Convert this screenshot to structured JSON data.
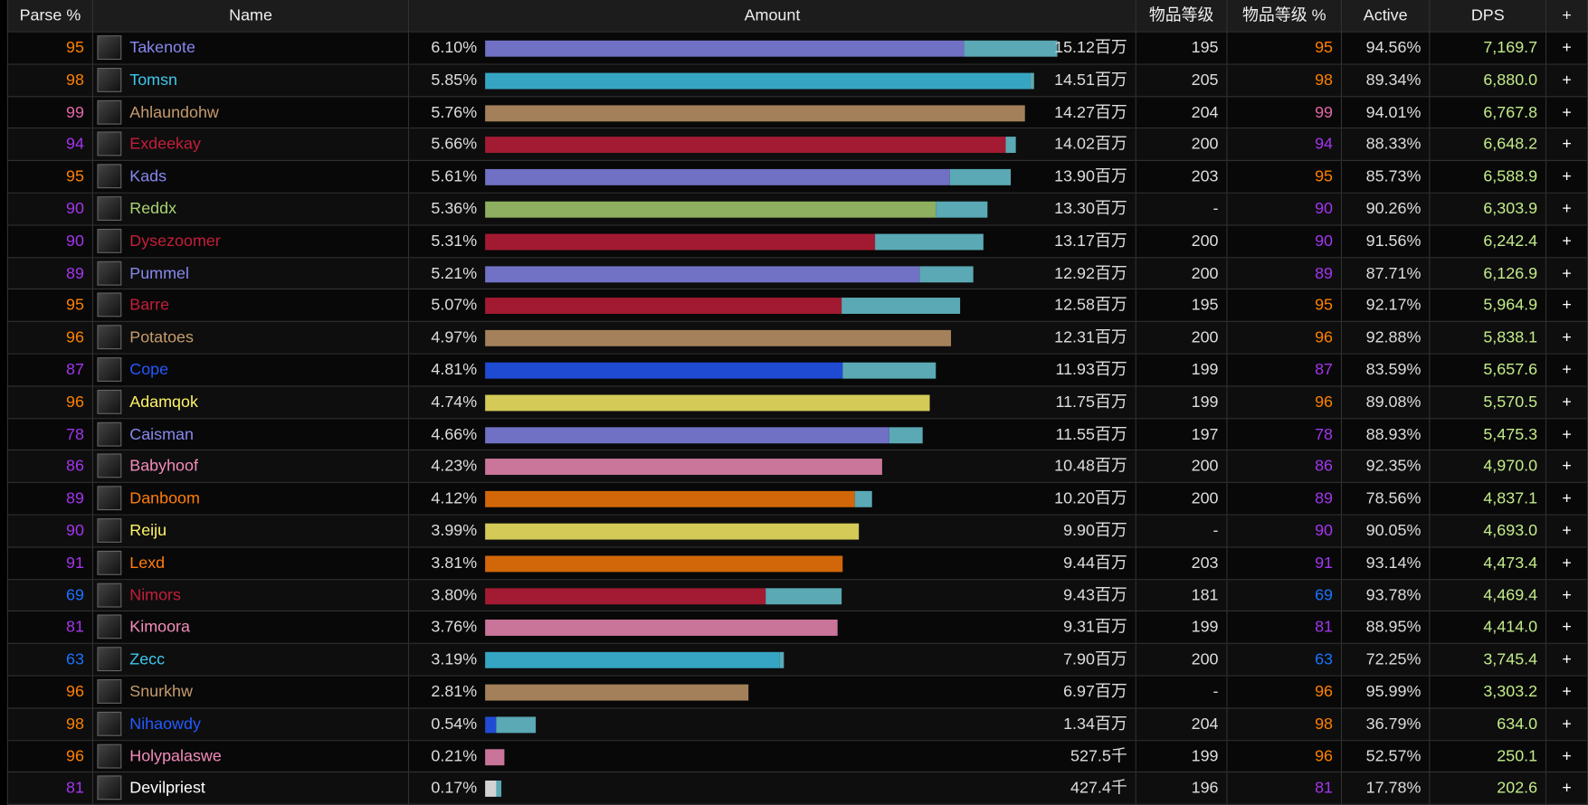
{
  "header": {
    "columns": [
      "Parse %",
      "Name",
      "Amount",
      "物品等级",
      "物品等级 %",
      "Active",
      "DPS",
      "+"
    ]
  },
  "table": {
    "rows": [
      {
        "parse": 95,
        "name": "Takenote",
        "color": "#8788ee",
        "amount_pct": "6.10%",
        "bar": [
          5.11,
          0.99
        ],
        "amount": "15.12百万",
        "ilvl": 195,
        "ilvl_pct": 95,
        "active": "94.56%",
        "dps": "7,169.7",
        "action": "+"
      },
      {
        "parse": 98,
        "name": "Tomsn",
        "color": "#3fc7eb",
        "amount_pct": "5.85%",
        "bar": [
          5.81,
          0.04
        ],
        "amount": "14.51百万",
        "ilvl": 205,
        "ilvl_pct": 98,
        "active": "89.34%",
        "dps": "6,880.0",
        "action": "+"
      },
      {
        "parse": 99,
        "name": "Ahlaundohw",
        "color": "#c69b6d",
        "amount_pct": "5.76%",
        "bar": [
          5.76,
          0
        ],
        "amount": "14.27百万",
        "ilvl": 204,
        "ilvl_pct": 99,
        "active": "94.01%",
        "dps": "6,767.8",
        "action": "+"
      },
      {
        "parse": 94,
        "name": "Exdeekay",
        "color": "#c41e3a",
        "amount_pct": "5.66%",
        "bar": [
          5.55,
          0.11
        ],
        "amount": "14.02百万",
        "ilvl": 200,
        "ilvl_pct": 94,
        "active": "88.33%",
        "dps": "6,648.2",
        "action": "+"
      },
      {
        "parse": 95,
        "name": "Kads",
        "color": "#8788ee",
        "amount_pct": "5.61%",
        "bar": [
          4.96,
          0.65
        ],
        "amount": "13.90百万",
        "ilvl": 203,
        "ilvl_pct": 95,
        "active": "85.73%",
        "dps": "6,588.9",
        "action": "+"
      },
      {
        "parse": 90,
        "name": "Reddx",
        "color": "#aad372",
        "amount_pct": "5.36%",
        "bar": [
          4.81,
          0.55
        ],
        "amount": "13.30百万",
        "ilvl": "-",
        "ilvl_pct": 90,
        "active": "90.26%",
        "dps": "6,303.9",
        "action": "+"
      },
      {
        "parse": 90,
        "name": "Dysezoomer",
        "color": "#c41e3a",
        "amount_pct": "5.31%",
        "bar": [
          4.16,
          1.15
        ],
        "amount": "13.17百万",
        "ilvl": 200,
        "ilvl_pct": 90,
        "active": "91.56%",
        "dps": "6,242.4",
        "action": "+"
      },
      {
        "parse": 89,
        "name": "Pummel",
        "color": "#8788ee",
        "amount_pct": "5.21%",
        "bar": [
          4.63,
          0.58
        ],
        "amount": "12.92百万",
        "ilvl": 200,
        "ilvl_pct": 89,
        "active": "87.71%",
        "dps": "6,126.9",
        "action": "+"
      },
      {
        "parse": 95,
        "name": "Barre",
        "color": "#c41e3a",
        "amount_pct": "5.07%",
        "bar": [
          3.8,
          1.27
        ],
        "amount": "12.58百万",
        "ilvl": 195,
        "ilvl_pct": 95,
        "active": "92.17%",
        "dps": "5,964.9",
        "action": "+"
      },
      {
        "parse": 96,
        "name": "Potatoes",
        "color": "#c69b6d",
        "amount_pct": "4.97%",
        "bar": [
          4.97,
          0
        ],
        "amount": "12.31百万",
        "ilvl": 200,
        "ilvl_pct": 96,
        "active": "92.88%",
        "dps": "5,838.1",
        "action": "+"
      },
      {
        "parse": 87,
        "name": "Cope",
        "color": "#2459ff",
        "amount_pct": "4.81%",
        "bar": [
          3.81,
          1.0
        ],
        "amount": "11.93百万",
        "ilvl": 199,
        "ilvl_pct": 87,
        "active": "83.59%",
        "dps": "5,657.6",
        "action": "+"
      },
      {
        "parse": 96,
        "name": "Adamqok",
        "color": "#fff468",
        "amount_pct": "4.74%",
        "bar": [
          4.74,
          0
        ],
        "amount": "11.75百万",
        "ilvl": 199,
        "ilvl_pct": 96,
        "active": "89.08%",
        "dps": "5,570.5",
        "action": "+"
      },
      {
        "parse": 78,
        "name": "Caisman",
        "color": "#8788ee",
        "amount_pct": "4.66%",
        "bar": [
          4.31,
          0.35
        ],
        "amount": "11.55百万",
        "ilvl": 197,
        "ilvl_pct": 78,
        "active": "88.93%",
        "dps": "5,475.3",
        "action": "+"
      },
      {
        "parse": 86,
        "name": "Babyhoof",
        "color": "#f48cba",
        "amount_pct": "4.23%",
        "bar": [
          4.23,
          0
        ],
        "amount": "10.48百万",
        "ilvl": 200,
        "ilvl_pct": 86,
        "active": "92.35%",
        "dps": "4,970.0",
        "action": "+"
      },
      {
        "parse": 89,
        "name": "Danboom",
        "color": "#ff7c0a",
        "amount_pct": "4.12%",
        "bar": [
          3.94,
          0.18
        ],
        "amount": "10.20百万",
        "ilvl": 200,
        "ilvl_pct": 89,
        "active": "78.56%",
        "dps": "4,837.1",
        "action": "+"
      },
      {
        "parse": 90,
        "name": "Reiju",
        "color": "#fff468",
        "amount_pct": "3.99%",
        "bar": [
          3.99,
          0
        ],
        "amount": "9.90百万",
        "ilvl": "-",
        "ilvl_pct": 90,
        "active": "90.05%",
        "dps": "4,693.0",
        "action": "+"
      },
      {
        "parse": 91,
        "name": "Lexd",
        "color": "#ff7c0a",
        "amount_pct": "3.81%",
        "bar": [
          3.81,
          0
        ],
        "amount": "9.44百万",
        "ilvl": 203,
        "ilvl_pct": 91,
        "active": "93.14%",
        "dps": "4,473.4",
        "action": "+"
      },
      {
        "parse": 69,
        "name": "Nimors",
        "color": "#c41e3a",
        "amount_pct": "3.80%",
        "bar": [
          2.99,
          0.81
        ],
        "amount": "9.43百万",
        "ilvl": 181,
        "ilvl_pct": 69,
        "active": "93.78%",
        "dps": "4,469.4",
        "action": "+"
      },
      {
        "parse": 81,
        "name": "Kimoora",
        "color": "#f48cba",
        "amount_pct": "3.76%",
        "bar": [
          3.76,
          0
        ],
        "amount": "9.31百万",
        "ilvl": 199,
        "ilvl_pct": 81,
        "active": "88.95%",
        "dps": "4,414.0",
        "action": "+"
      },
      {
        "parse": 63,
        "name": "Zecc",
        "color": "#3fc7eb",
        "amount_pct": "3.19%",
        "bar": [
          3.14,
          0.05
        ],
        "amount": "7.90百万",
        "ilvl": 200,
        "ilvl_pct": 63,
        "active": "72.25%",
        "dps": "3,745.4",
        "action": "+"
      },
      {
        "parse": 96,
        "name": "Snurkhw",
        "color": "#c69b6d",
        "amount_pct": "2.81%",
        "bar": [
          2.81,
          0
        ],
        "amount": "6.97百万",
        "ilvl": "-",
        "ilvl_pct": 96,
        "active": "95.99%",
        "dps": "3,303.2",
        "action": "+"
      },
      {
        "parse": 98,
        "name": "Nihaowdy",
        "color": "#2459ff",
        "amount_pct": "0.54%",
        "bar": [
          0.12,
          0.42
        ],
        "amount": "1.34百万",
        "ilvl": 204,
        "ilvl_pct": 98,
        "active": "36.79%",
        "dps": "634.0",
        "action": "+"
      },
      {
        "parse": 96,
        "name": "Holypalaswe",
        "color": "#f48cba",
        "amount_pct": "0.21%",
        "bar": [
          0.21,
          0
        ],
        "amount": "527.5千",
        "ilvl": 199,
        "ilvl_pct": 96,
        "active": "52.57%",
        "dps": "250.1",
        "action": "+"
      },
      {
        "parse": 81,
        "name": "Devilpriest",
        "color": "#ffffff",
        "amount_pct": "0.17%",
        "bar": [
          0.12,
          0.05
        ],
        "amount": "427.4千",
        "ilvl": 196,
        "ilvl_pct": 81,
        "active": "17.78%",
        "dps": "202.6",
        "action": "+"
      }
    ]
  }
}
